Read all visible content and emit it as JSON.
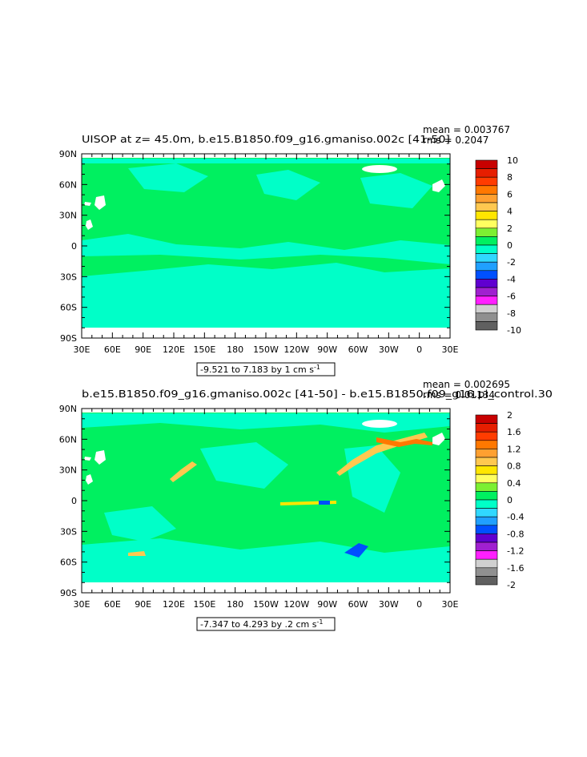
{
  "chart_data": [
    {
      "type": "heatmap",
      "title": "UISOP at z=  45.0m, b.e15.B1850.f09_g16.gmaniso.002c [41-50]",
      "stats": {
        "mean": "mean = 0.003767",
        "rms": "rms = 0.2047"
      },
      "x_ticks": [
        "30E",
        "60E",
        "90E",
        "120E",
        "150E",
        "180",
        "150W",
        "120W",
        "90W",
        "60W",
        "30W",
        "0",
        "30E"
      ],
      "y_ticks": [
        "90N",
        "60N",
        "30N",
        "0",
        "30S",
        "60S",
        "90S"
      ],
      "range_label": "-9.521 to 7.183 by 1 cm s",
      "range_sup": "-1",
      "colorbar": {
        "labels": [
          "10",
          "8",
          "6",
          "4",
          "2",
          "0",
          "-2",
          "-4",
          "-6",
          "-8",
          "-10"
        ],
        "colors": [
          "#c80000",
          "#e61e00",
          "#ff3c00",
          "#ff7800",
          "#ffa030",
          "#ffc850",
          "#ffe600",
          "#ffff60",
          "#7cf032",
          "#00f060",
          "#00ffc8",
          "#30d8ff",
          "#20a0ff",
          "#0050ff",
          "#6000d0",
          "#a020d0",
          "#ff20ff",
          "#d0d0d0",
          "#909090",
          "#606060"
        ]
      },
      "map": {
        "ocean_color": "#00f060",
        "cold_color": "#00ffc8",
        "land_color": "#ffffff"
      }
    },
    {
      "type": "heatmap",
      "title": "b.e15.B1850.f09_g16.gmaniso.002c [41-50] - b.e15.B1850.f09_g16.pi_control.30",
      "stats": {
        "mean": "mean = 0.002695",
        "rms": "rms = 0.01134"
      },
      "x_ticks": [
        "30E",
        "60E",
        "90E",
        "120E",
        "150E",
        "180",
        "150W",
        "120W",
        "90W",
        "60W",
        "30W",
        "0",
        "30E"
      ],
      "y_ticks": [
        "90N",
        "60N",
        "30N",
        "0",
        "30S",
        "60S",
        "90S"
      ],
      "range_label": "-7.347 to 4.293 by .2 cm s",
      "range_sup": "-1",
      "colorbar": {
        "labels": [
          "2",
          "1.6",
          "1.2",
          "0.8",
          "0.4",
          "0",
          "-0.4",
          "-0.8",
          "-1.2",
          "-1.6",
          "-2"
        ],
        "colors": [
          "#c80000",
          "#e61e00",
          "#ff3c00",
          "#ff7800",
          "#ffa030",
          "#ffc850",
          "#ffe600",
          "#ffff60",
          "#7cf032",
          "#00f060",
          "#00ffc8",
          "#30d8ff",
          "#20a0ff",
          "#0050ff",
          "#6000d0",
          "#a020d0",
          "#ff20ff",
          "#d0d0d0",
          "#909090",
          "#606060"
        ]
      },
      "map": {
        "ocean_color": "#00f060",
        "cold_color": "#00ffc8",
        "land_color": "#ffffff"
      }
    }
  ]
}
